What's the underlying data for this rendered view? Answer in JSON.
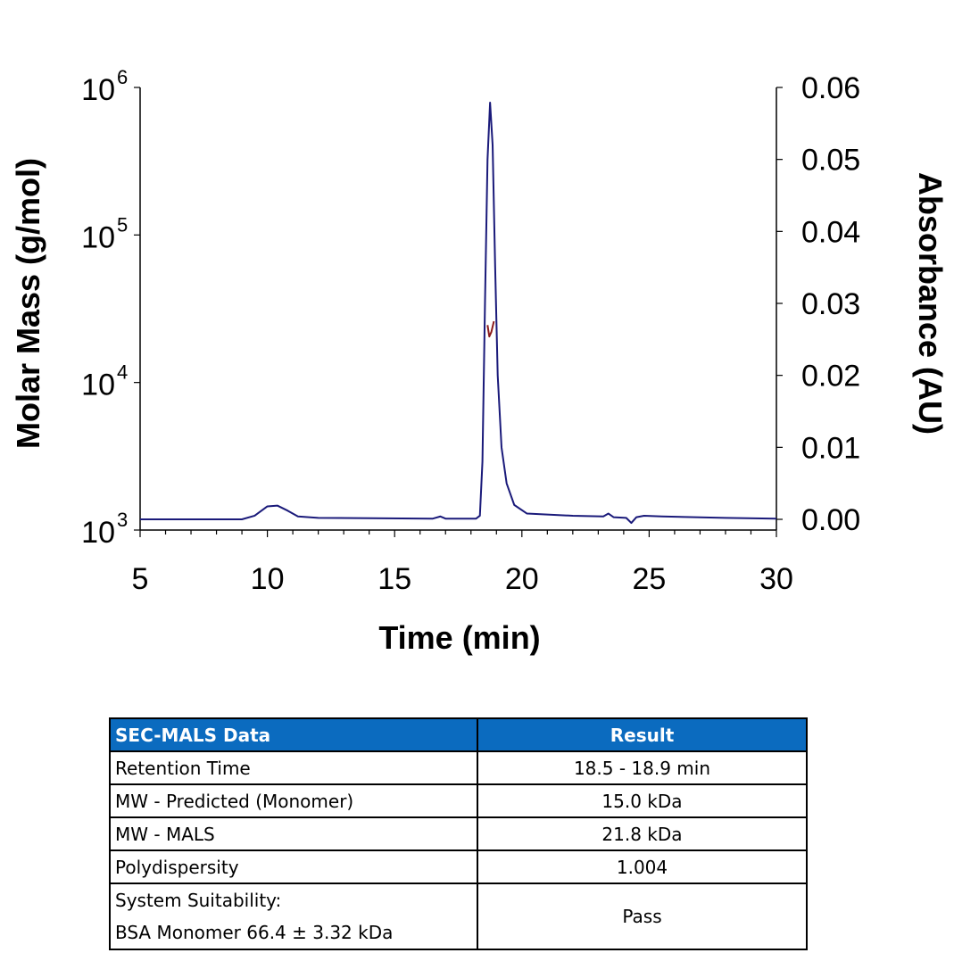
{
  "chart_data": {
    "type": "line",
    "xlabel": "Time (min)",
    "ylabel_left": "Molar Mass (g/mol)",
    "ylabel_right": "Absorbance (AU)",
    "xlim": [
      5,
      30
    ],
    "xticks": [
      "5",
      "10",
      "15",
      "20",
      "25",
      "30"
    ],
    "ylim_left": [
      1000,
      1000000
    ],
    "yscale_left": "log",
    "yticks_left": [
      {
        "base": "10",
        "exp": "3"
      },
      {
        "base": "10",
        "exp": "4"
      },
      {
        "base": "10",
        "exp": "5"
      },
      {
        "base": "10",
        "exp": "6"
      }
    ],
    "ylim_right": [
      0,
      0.06
    ],
    "yticks_right": [
      "0.00",
      "0.01",
      "0.02",
      "0.03",
      "0.04",
      "0.05",
      "0.06"
    ],
    "grid": false,
    "series": [
      {
        "axis": "right",
        "color": "#1a1a7a",
        "points": [
          [
            5,
            0
          ],
          [
            9,
            0
          ],
          [
            9.5,
            0.0005
          ],
          [
            10,
            0.0018
          ],
          [
            10.4,
            0.0019
          ],
          [
            10.8,
            0.0012
          ],
          [
            11.2,
            0.0004
          ],
          [
            12,
            0.0002
          ],
          [
            16.5,
            0.0001
          ],
          [
            16.8,
            0.0004
          ],
          [
            17,
            0.0001
          ],
          [
            18.2,
            0.0001
          ],
          [
            18.35,
            0.0005
          ],
          [
            18.45,
            0.008
          ],
          [
            18.55,
            0.03
          ],
          [
            18.65,
            0.05
          ],
          [
            18.75,
            0.0579
          ],
          [
            18.85,
            0.052
          ],
          [
            18.95,
            0.035
          ],
          [
            19.05,
            0.02
          ],
          [
            19.2,
            0.01
          ],
          [
            19.4,
            0.005
          ],
          [
            19.7,
            0.002
          ],
          [
            20.2,
            0.0008
          ],
          [
            22,
            0.0005
          ],
          [
            23.2,
            0.0004
          ],
          [
            23.4,
            0.0008
          ],
          [
            23.6,
            0.0003
          ],
          [
            24.1,
            0.0002
          ],
          [
            24.3,
            -0.0005
          ],
          [
            24.5,
            0.0003
          ],
          [
            24.8,
            0.0005
          ],
          [
            25.5,
            0.0004
          ],
          [
            28,
            0.0002
          ],
          [
            30,
            0.0001
          ]
        ]
      },
      {
        "axis": "left",
        "color": "#8b1a1a",
        "points": [
          [
            18.65,
            24500
          ],
          [
            18.72,
            20500
          ],
          [
            18.8,
            22000
          ],
          [
            18.9,
            26000
          ]
        ]
      }
    ]
  },
  "table": {
    "headers": [
      "SEC-MALS Data",
      "Result"
    ],
    "rows": [
      {
        "label": "Retention Time",
        "value": "18.5 - 18.9 min"
      },
      {
        "label": "MW - Predicted (Monomer)",
        "value": "15.0 kDa"
      },
      {
        "label": "MW - MALS",
        "value": "21.8 kDa"
      },
      {
        "label": "Polydispersity",
        "value": "1.004"
      },
      {
        "label": "System Suitability:",
        "label2": "BSA Monomer 66.4 ± 3.32 kDa",
        "value": "Pass"
      }
    ]
  }
}
